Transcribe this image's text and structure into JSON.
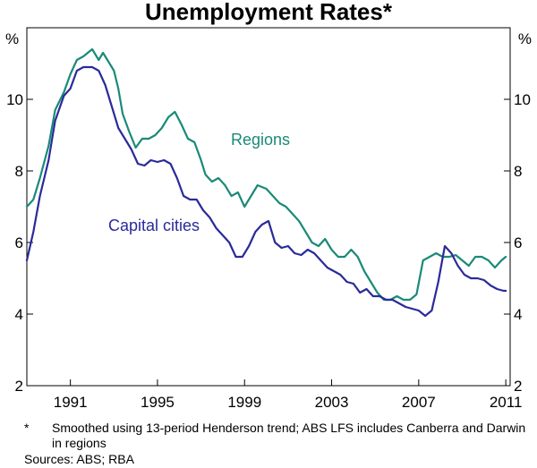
{
  "chart_data": {
    "type": "line",
    "title": "Unemployment Rates*",
    "ylabel_left": "%",
    "ylabel_right": "%",
    "ylim": [
      2,
      12
    ],
    "xlim": [
      1989,
      2011.2
    ],
    "yticks": [
      2,
      4,
      6,
      8,
      10
    ],
    "xticks": [
      1991,
      1995,
      1999,
      2003,
      2007,
      2011
    ],
    "grid": false,
    "colors": {
      "Regions": "#1a8a78",
      "Capital cities": "#2a2a9a"
    },
    "series": [
      {
        "name": "Regions",
        "label": "Regions",
        "x": [
          1989.0,
          1989.3,
          1989.6,
          1990.0,
          1990.3,
          1990.7,
          1991.0,
          1991.3,
          1991.6,
          1992.0,
          1992.3,
          1992.5,
          1992.7,
          1993.0,
          1993.2,
          1993.4,
          1993.7,
          1994.0,
          1994.3,
          1994.6,
          1994.9,
          1995.2,
          1995.5,
          1995.8,
          1996.1,
          1996.4,
          1996.7,
          1997.0,
          1997.2,
          1997.5,
          1997.8,
          1998.1,
          1998.4,
          1998.7,
          1999.0,
          1999.3,
          1999.6,
          2000.0,
          2000.3,
          2000.6,
          2000.9,
          2001.2,
          2001.5,
          2001.8,
          2002.1,
          2002.4,
          2002.7,
          2003.0,
          2003.3,
          2003.6,
          2003.9,
          2004.2,
          2004.5,
          2004.8,
          2005.1,
          2005.4,
          2005.7,
          2006.0,
          2006.3,
          2006.6,
          2006.9,
          2007.2,
          2007.5,
          2007.8,
          2008.1,
          2008.4,
          2008.7,
          2009.0,
          2009.3,
          2009.6,
          2009.9,
          2010.2,
          2010.5,
          2010.8,
          2011.0
        ],
        "values": [
          7.0,
          7.2,
          7.8,
          8.7,
          9.7,
          10.2,
          10.7,
          11.1,
          11.2,
          11.4,
          11.1,
          11.3,
          11.1,
          10.8,
          10.3,
          9.6,
          9.1,
          8.65,
          8.9,
          8.9,
          9.0,
          9.2,
          9.5,
          9.65,
          9.3,
          8.9,
          8.8,
          8.3,
          7.9,
          7.7,
          7.8,
          7.6,
          7.3,
          7.4,
          7.0,
          7.3,
          7.6,
          7.5,
          7.3,
          7.1,
          7.0,
          6.8,
          6.6,
          6.3,
          6.0,
          5.9,
          6.1,
          5.8,
          5.6,
          5.6,
          5.8,
          5.6,
          5.2,
          4.9,
          4.6,
          4.4,
          4.4,
          4.5,
          4.4,
          4.4,
          4.55,
          5.5,
          5.6,
          5.7,
          5.6,
          5.6,
          5.65,
          5.5,
          5.35,
          5.6,
          5.6,
          5.5,
          5.3,
          5.5,
          5.6
        ]
      },
      {
        "name": "Capital cities",
        "label": "Capital cities",
        "x": [
          1989.0,
          1989.3,
          1989.6,
          1990.0,
          1990.3,
          1990.7,
          1991.0,
          1991.3,
          1991.6,
          1992.0,
          1992.3,
          1992.6,
          1992.9,
          1993.2,
          1993.5,
          1993.8,
          1994.1,
          1994.4,
          1994.7,
          1995.0,
          1995.3,
          1995.6,
          1995.9,
          1996.2,
          1996.5,
          1996.8,
          1997.1,
          1997.4,
          1997.7,
          1998.0,
          1998.3,
          1998.6,
          1998.9,
          1999.2,
          1999.5,
          1999.8,
          2000.1,
          2000.4,
          2000.7,
          2001.0,
          2001.3,
          2001.6,
          2001.9,
          2002.2,
          2002.5,
          2002.8,
          2003.1,
          2003.4,
          2003.7,
          2004.0,
          2004.3,
          2004.6,
          2004.9,
          2005.2,
          2005.5,
          2005.8,
          2006.1,
          2006.4,
          2006.7,
          2007.0,
          2007.3,
          2007.6,
          2007.9,
          2008.2,
          2008.5,
          2008.8,
          2009.1,
          2009.4,
          2009.7,
          2010.0,
          2010.3,
          2010.6,
          2010.9,
          2011.0
        ],
        "values": [
          5.5,
          6.3,
          7.3,
          8.3,
          9.4,
          10.1,
          10.3,
          10.8,
          10.9,
          10.9,
          10.8,
          10.4,
          9.8,
          9.2,
          8.9,
          8.6,
          8.2,
          8.15,
          8.3,
          8.25,
          8.3,
          8.2,
          7.8,
          7.3,
          7.2,
          7.2,
          6.9,
          6.7,
          6.4,
          6.2,
          6.0,
          5.6,
          5.6,
          5.9,
          6.3,
          6.5,
          6.6,
          6.0,
          5.85,
          5.9,
          5.7,
          5.65,
          5.8,
          5.7,
          5.5,
          5.3,
          5.2,
          5.1,
          4.9,
          4.85,
          4.6,
          4.7,
          4.5,
          4.5,
          4.4,
          4.4,
          4.3,
          4.2,
          4.15,
          4.1,
          3.95,
          4.1,
          4.9,
          5.9,
          5.7,
          5.35,
          5.1,
          5.0,
          5.0,
          4.95,
          4.8,
          4.7,
          4.65,
          4.65
        ]
      }
    ]
  },
  "footnote_marker": "*",
  "footnote": "Smoothed using 13-period Henderson trend; ABS LFS includes Canberra and Darwin in regions",
  "sources": "Sources: ABS; RBA"
}
